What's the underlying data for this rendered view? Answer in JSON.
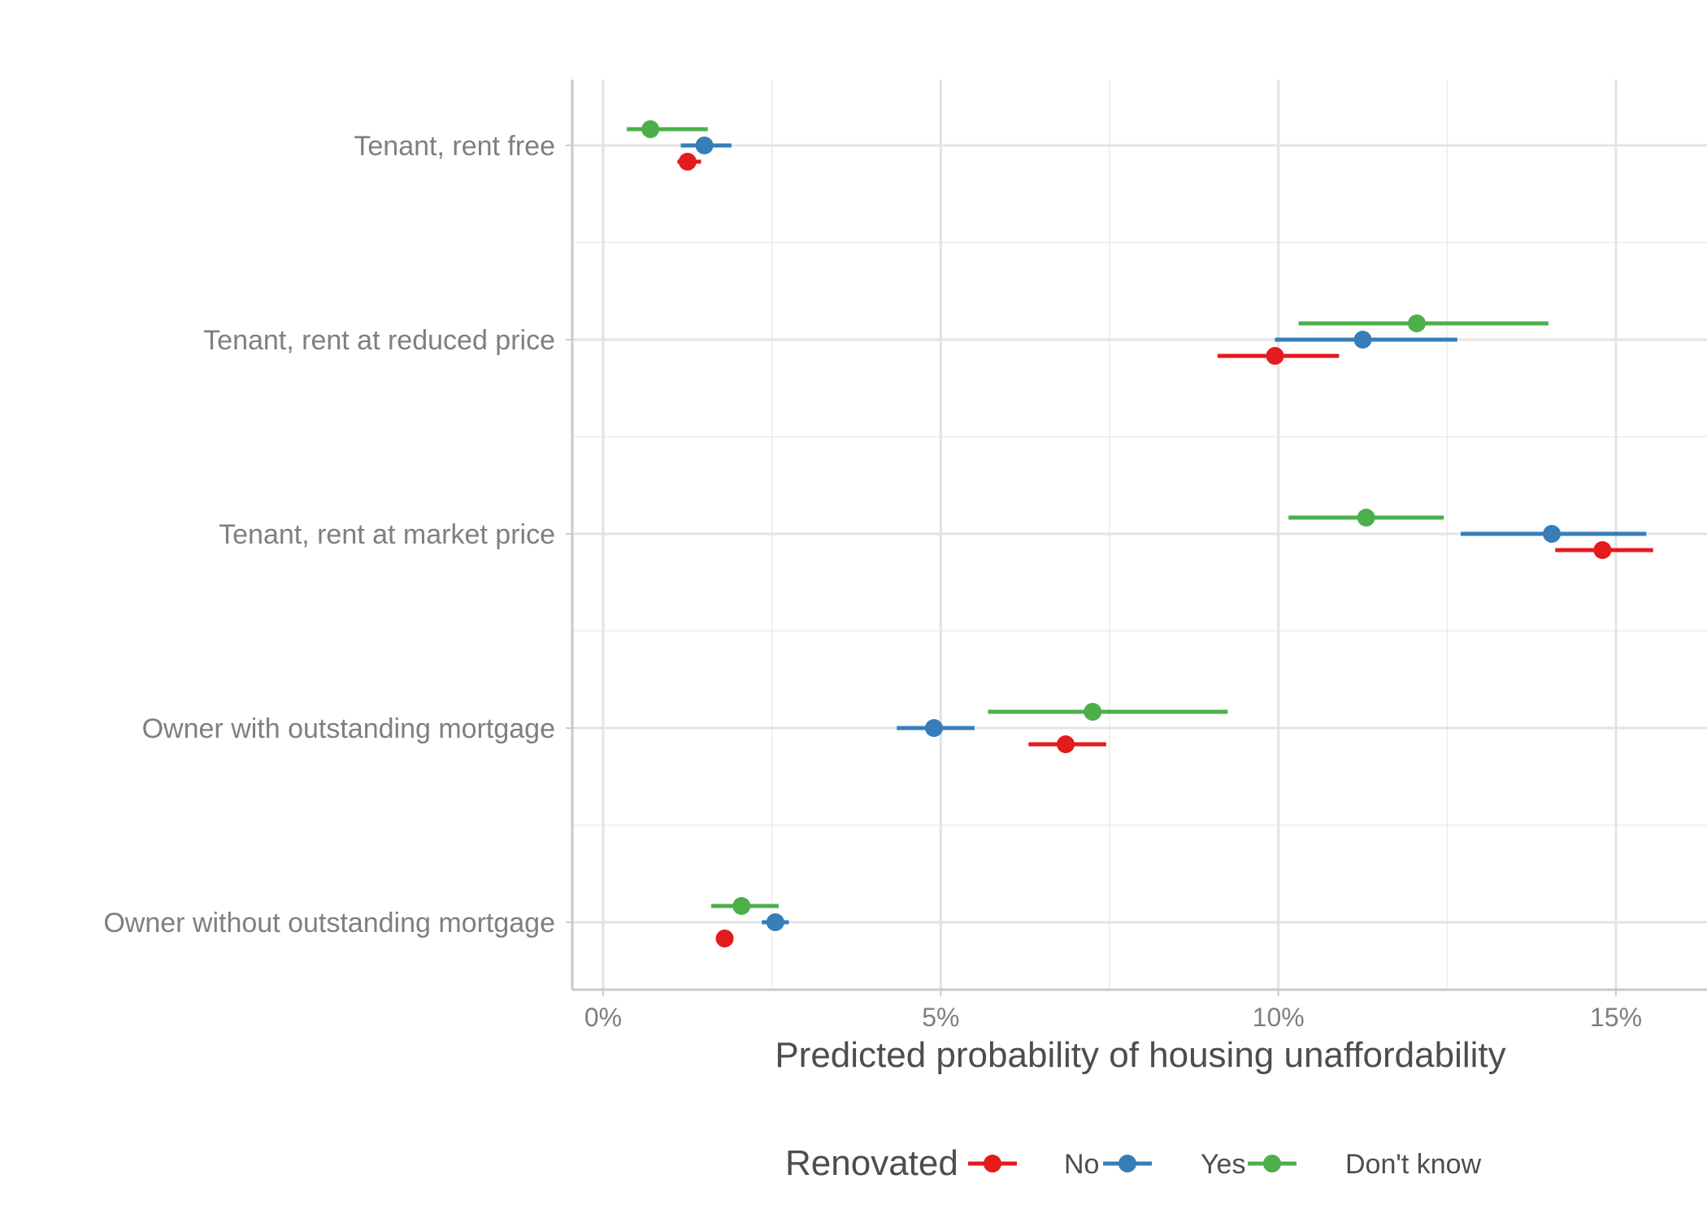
{
  "chart_data": {
    "type": "scatter",
    "subtype": "dot-and-whisker",
    "title": "",
    "xlabel": "Predicted probability of housing unaffordability",
    "ylabel": "",
    "xlim": [
      -0.009,
      0.164
    ],
    "x_ticks": [
      0,
      0.05,
      0.1,
      0.15
    ],
    "x_tick_labels": [
      "0%",
      "5%",
      "10%",
      "15%"
    ],
    "categories": [
      "Tenant, rent free",
      "Tenant, rent at reduced price",
      "Tenant, rent at market price",
      "Owner with outstanding mortgage",
      "Owner without outstanding mortgage"
    ],
    "grid": true,
    "legend": {
      "title": "Renovated",
      "position": "bottom"
    },
    "series": [
      {
        "name": "No",
        "color": "#E41A1C",
        "points": [
          {
            "category": "Tenant, rent free",
            "estimate": 0.0125,
            "lower": 0.011,
            "upper": 0.0145
          },
          {
            "category": "Tenant, rent at reduced price",
            "estimate": 0.0995,
            "lower": 0.091,
            "upper": 0.109
          },
          {
            "category": "Tenant, rent at market price",
            "estimate": 0.148,
            "lower": 0.141,
            "upper": 0.1555
          },
          {
            "category": "Owner with outstanding mortgage",
            "estimate": 0.0685,
            "lower": 0.063,
            "upper": 0.0745
          },
          {
            "category": "Owner without outstanding mortgage",
            "estimate": 0.018,
            "lower": 0.018,
            "upper": 0.018
          }
        ]
      },
      {
        "name": "Yes",
        "color": "#377EB8",
        "points": [
          {
            "category": "Tenant, rent free",
            "estimate": 0.015,
            "lower": 0.0115,
            "upper": 0.019
          },
          {
            "category": "Tenant, rent at reduced price",
            "estimate": 0.1125,
            "lower": 0.0995,
            "upper": 0.1265
          },
          {
            "category": "Tenant, rent at market price",
            "estimate": 0.1405,
            "lower": 0.127,
            "upper": 0.1545
          },
          {
            "category": "Owner with outstanding mortgage",
            "estimate": 0.049,
            "lower": 0.0435,
            "upper": 0.055
          },
          {
            "category": "Owner without outstanding mortgage",
            "estimate": 0.0255,
            "lower": 0.0235,
            "upper": 0.0275
          }
        ]
      },
      {
        "name": "Don't know",
        "color": "#4DAF4A",
        "points": [
          {
            "category": "Tenant, rent free",
            "estimate": 0.007,
            "lower": 0.0035,
            "upper": 0.0155
          },
          {
            "category": "Tenant, rent at reduced price",
            "estimate": 0.1205,
            "lower": 0.103,
            "upper": 0.14
          },
          {
            "category": "Tenant, rent at market price",
            "estimate": 0.113,
            "lower": 0.1015,
            "upper": 0.1245
          },
          {
            "category": "Owner with outstanding mortgage",
            "estimate": 0.0725,
            "lower": 0.057,
            "upper": 0.0925
          },
          {
            "category": "Owner without outstanding mortgage",
            "estimate": 0.0205,
            "lower": 0.016,
            "upper": 0.026
          }
        ]
      }
    ]
  }
}
